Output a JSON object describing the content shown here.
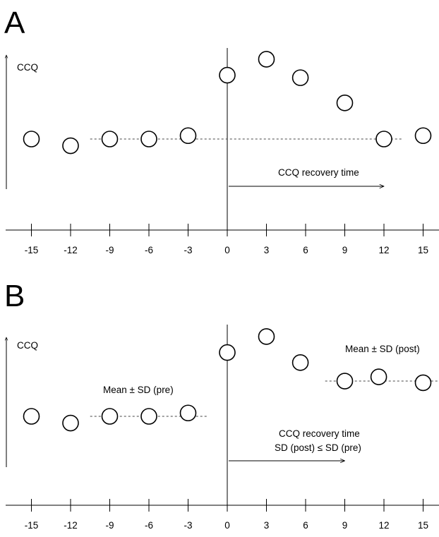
{
  "chart_data": [
    {
      "type": "scatter",
      "panel_label": "A",
      "ylabel": "CCQ",
      "x_ticks": [
        "-15",
        "-12",
        "-9",
        "-6",
        "-3",
        "0",
        "3",
        "6",
        "9",
        "12",
        "15"
      ],
      "xlim": [
        -15,
        15
      ],
      "points": [
        {
          "x": -15,
          "y": 0.0
        },
        {
          "x": -12,
          "y": -0.08
        },
        {
          "x": -9,
          "y": 0.0
        },
        {
          "x": -6,
          "y": 0.0
        },
        {
          "x": -3,
          "y": 0.04
        },
        {
          "x": 0,
          "y": 0.76
        },
        {
          "x": 3,
          "y": 0.95
        },
        {
          "x": 5.6,
          "y": 0.73
        },
        {
          "x": 9,
          "y": 0.43
        },
        {
          "x": 12,
          "y": 0.0
        },
        {
          "x": 15,
          "y": 0.04
        }
      ],
      "reference_lines": [
        {
          "style": "dashed",
          "x_range": [
            -10.5,
            13.5
          ],
          "y": 0.0
        }
      ],
      "annotations": [
        {
          "text": "CCQ recovery time",
          "lines": [
            "CCQ recovery time"
          ],
          "arrow_x_range": [
            0,
            12
          ]
        }
      ]
    },
    {
      "type": "scatter",
      "panel_label": "B",
      "ylabel": "CCQ",
      "x_ticks": [
        "-15",
        "-12",
        "-9",
        "-6",
        "-3",
        "0",
        "3",
        "6",
        "9",
        "12",
        "15"
      ],
      "xlim": [
        -15,
        15
      ],
      "points": [
        {
          "x": -15,
          "y": 0.0
        },
        {
          "x": -12,
          "y": -0.08
        },
        {
          "x": -9,
          "y": 0.0
        },
        {
          "x": -6,
          "y": 0.0
        },
        {
          "x": -3,
          "y": 0.04
        },
        {
          "x": 0,
          "y": 0.76
        },
        {
          "x": 3,
          "y": 0.95
        },
        {
          "x": 5.6,
          "y": 0.64
        },
        {
          "x": 9,
          "y": 0.42
        },
        {
          "x": 11.6,
          "y": 0.47
        },
        {
          "x": 15,
          "y": 0.4
        }
      ],
      "reference_lines": [
        {
          "style": "dashed",
          "x_range": [
            -10.5,
            -1.5
          ],
          "y": 0.0
        },
        {
          "style": "dashed",
          "x_range": [
            7.5,
            16.5
          ],
          "y": 0.42
        }
      ],
      "annotations": [
        {
          "text": "Mean ± SD (pre)",
          "lines": [
            "Mean ± SD (pre)"
          ]
        },
        {
          "text": "Mean ± SD (post)",
          "lines": [
            "Mean ± SD (post)"
          ]
        },
        {
          "text": "CCQ recovery time SD (post) ≤ SD (pre)",
          "lines": [
            "CCQ recovery time",
            "SD (post) ≤ SD (pre)"
          ],
          "arrow_x_range": [
            0,
            9
          ]
        }
      ]
    }
  ]
}
